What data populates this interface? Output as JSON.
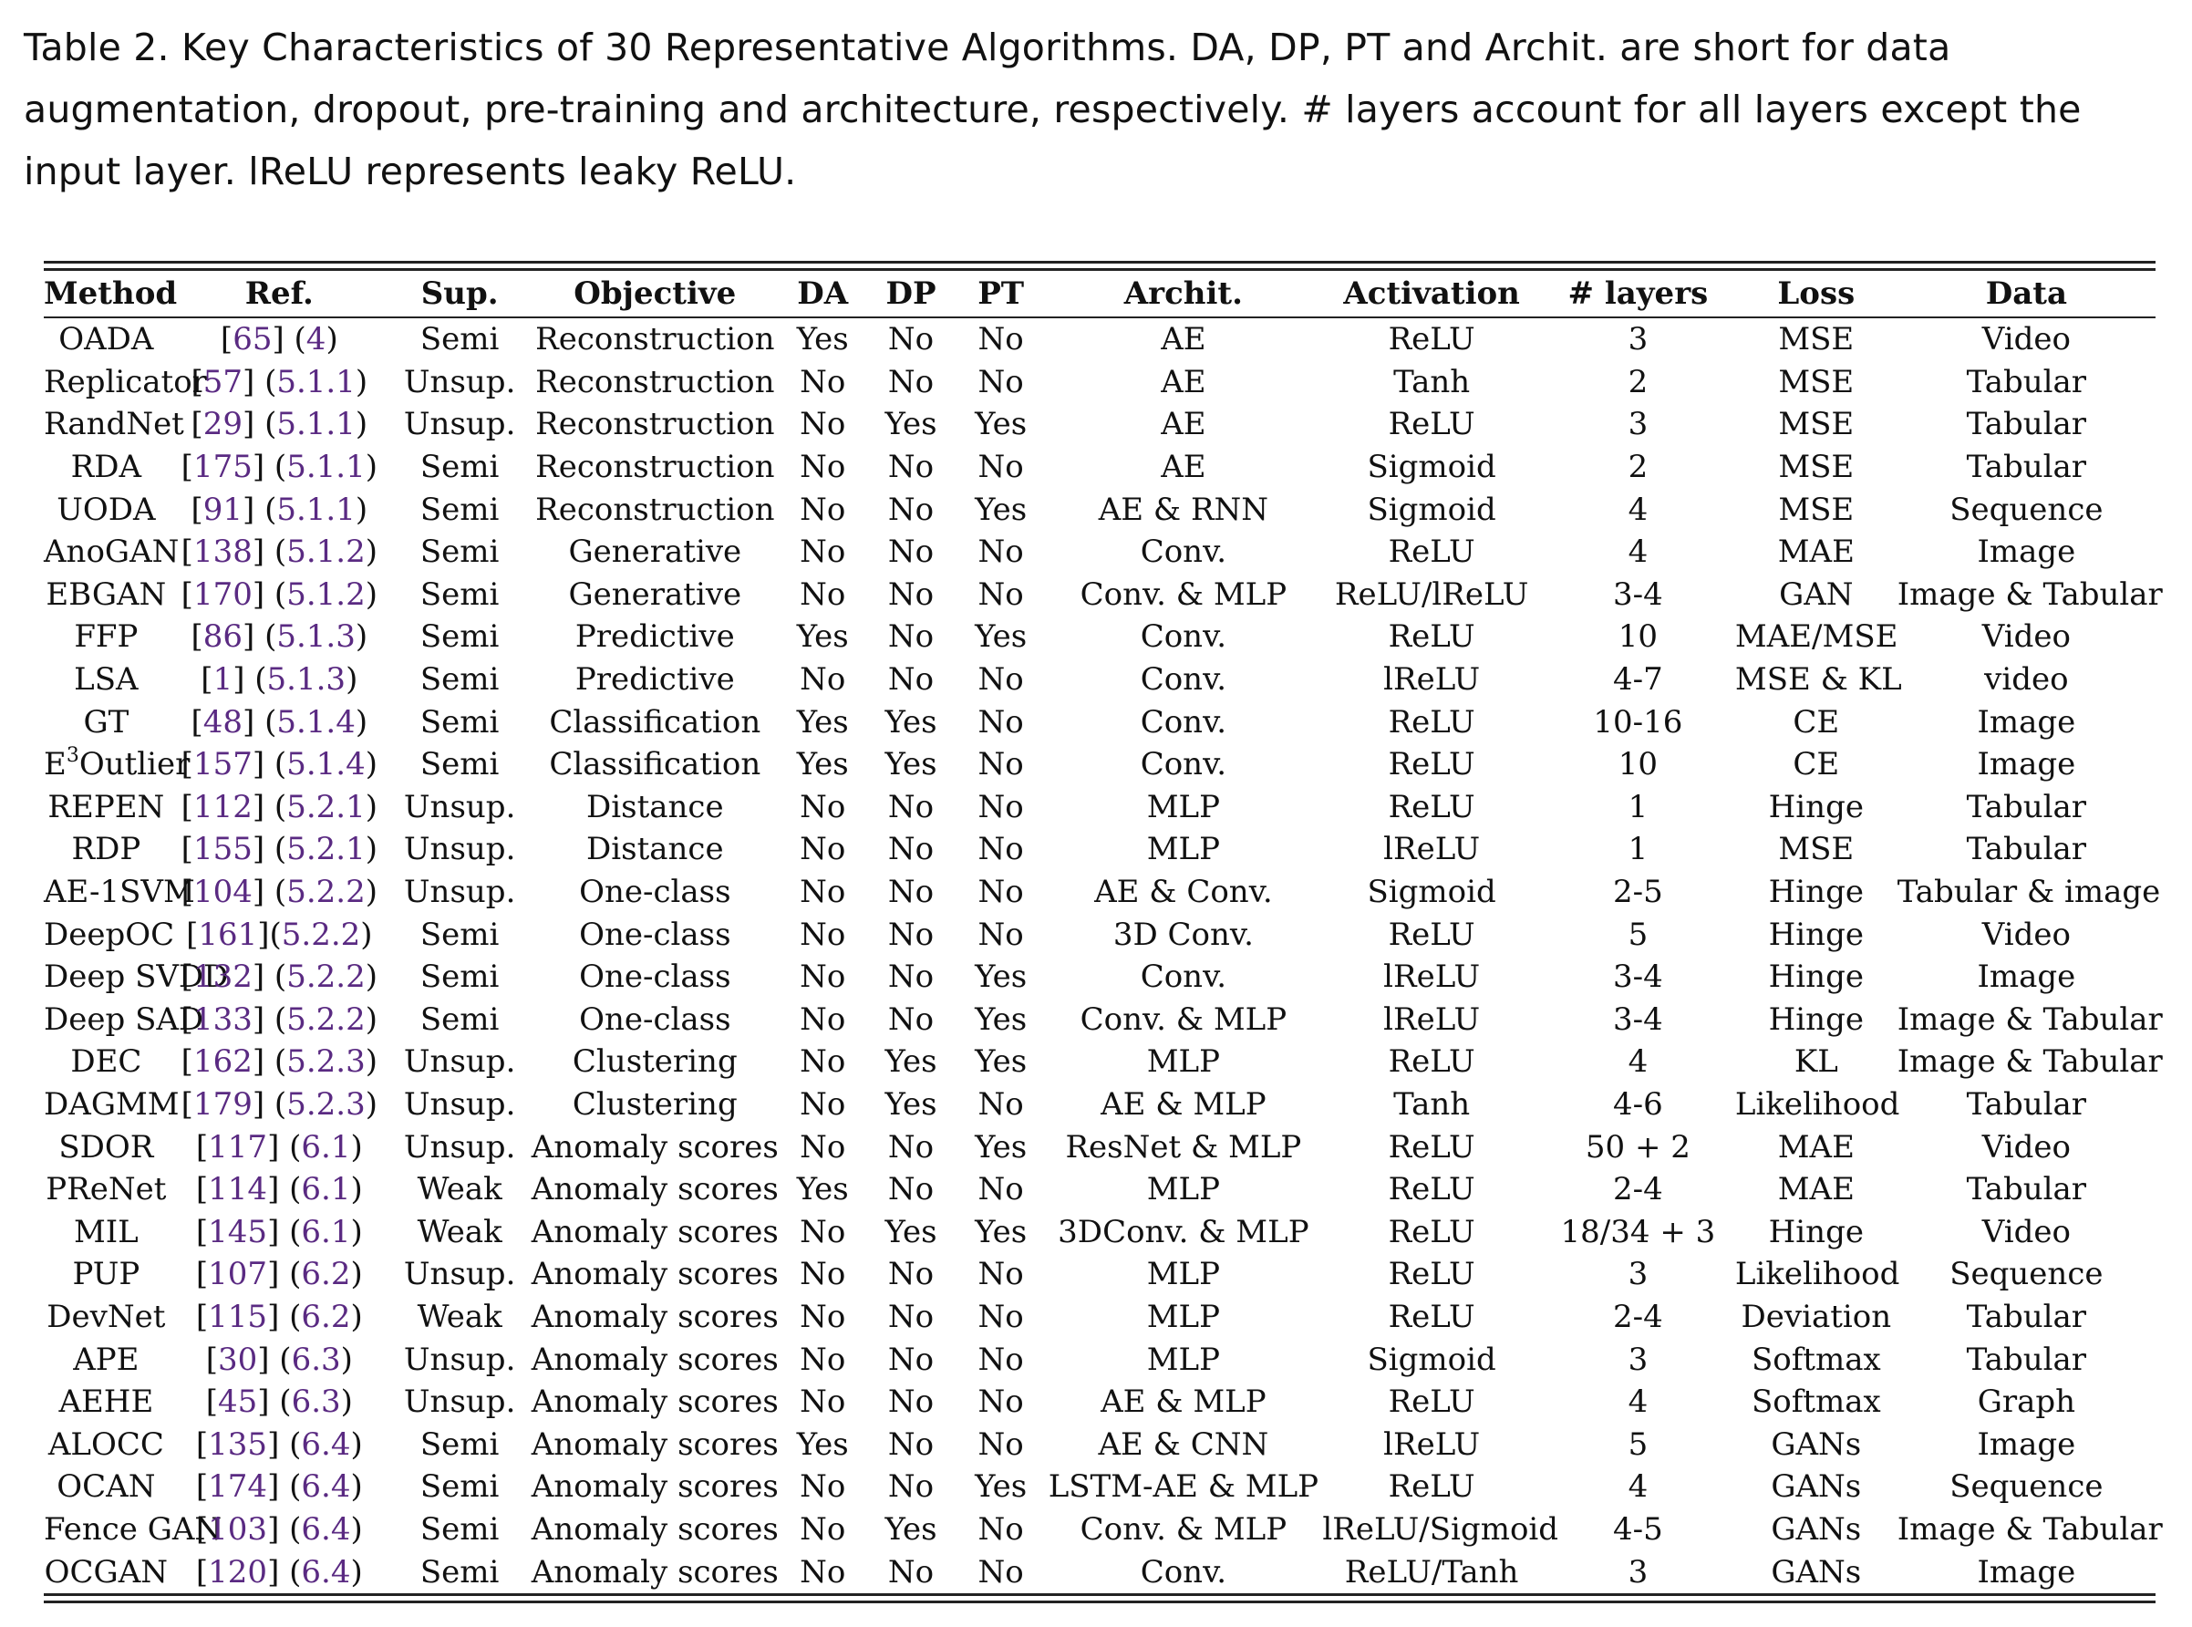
{
  "caption": "Table 2.  Key Characteristics of 30 Representative Algorithms. DA, DP, PT and Archit. are short for data augmentation, dropout, pre-training and architecture, respectively. # layers account for all layers except the input layer. lReLU represents leaky ReLU.",
  "colors": {
    "reference_link": "#5a2a82",
    "text": "#111111"
  },
  "table": {
    "headers": [
      "Method",
      "Ref.",
      "Sup.",
      "Objective",
      "DA",
      "DP",
      "PT",
      "Archit.",
      "Activation",
      "# layers",
      "Loss",
      "Data"
    ],
    "rows": [
      {
        "method": "OADA",
        "ref_num": "65",
        "ref_sec": "4",
        "sup": "Semi",
        "objective": "Reconstruction",
        "da": "Yes",
        "dp": "No",
        "pt": "No",
        "archit": "AE",
        "activation": "ReLU",
        "layers": "3",
        "loss": "MSE",
        "data": "Video"
      },
      {
        "method": "Replicator",
        "ref_num": "57",
        "ref_sec": "5.1.1",
        "sup": "Unsup.",
        "objective": "Reconstruction",
        "da": "No",
        "dp": "No",
        "pt": "No",
        "archit": "AE",
        "activation": "Tanh",
        "layers": "2",
        "loss": "MSE",
        "data": "Tabular"
      },
      {
        "method": "RandNet",
        "ref_num": "29",
        "ref_sec": "5.1.1",
        "sup": "Unsup.",
        "objective": "Reconstruction",
        "da": "No",
        "dp": "Yes",
        "pt": "Yes",
        "archit": "AE",
        "activation": "ReLU",
        "layers": "3",
        "loss": "MSE",
        "data": "Tabular"
      },
      {
        "method": "RDA",
        "ref_num": "175",
        "ref_sec": "5.1.1",
        "sup": "Semi",
        "objective": "Reconstruction",
        "da": "No",
        "dp": "No",
        "pt": "No",
        "archit": "AE",
        "activation": "Sigmoid",
        "layers": "2",
        "loss": "MSE",
        "data": "Tabular"
      },
      {
        "method": "UODA",
        "ref_num": "91",
        "ref_sec": "5.1.1",
        "sup": "Semi",
        "objective": "Reconstruction",
        "da": "No",
        "dp": "No",
        "pt": "Yes",
        "archit": "AE & RNN",
        "activation": "Sigmoid",
        "layers": "4",
        "loss": "MSE",
        "data": "Sequence"
      },
      {
        "method": "AnoGAN",
        "ref_num": "138",
        "ref_sec": "5.1.2",
        "sup": "Semi",
        "objective": "Generative",
        "da": "No",
        "dp": "No",
        "pt": "No",
        "archit": "Conv.",
        "activation": "ReLU",
        "layers": "4",
        "loss": "MAE",
        "data": "Image"
      },
      {
        "method": "EBGAN",
        "ref_num": "170",
        "ref_sec": "5.1.2",
        "sup": "Semi",
        "objective": "Generative",
        "da": "No",
        "dp": "No",
        "pt": "No",
        "archit": "Conv. & MLP",
        "activation": "ReLU/lReLU",
        "layers": "3-4",
        "loss": "GAN",
        "data": "Image & Tabular"
      },
      {
        "method": "FFP",
        "ref_num": "86",
        "ref_sec": "5.1.3",
        "sup": "Semi",
        "objective": "Predictive",
        "da": "Yes",
        "dp": "No",
        "pt": "Yes",
        "archit": "Conv.",
        "activation": "ReLU",
        "layers": "10",
        "loss": "MAE/MSE",
        "data": "Video"
      },
      {
        "method": "LSA",
        "ref_num": "1",
        "ref_sec": "5.1.3",
        "sup": "Semi",
        "objective": "Predictive",
        "da": "No",
        "dp": "No",
        "pt": "No",
        "archit": "Conv.",
        "activation": "lReLU",
        "layers": "4-7",
        "loss": "MSE & KL",
        "data": "video"
      },
      {
        "method": "GT",
        "ref_num": "48",
        "ref_sec": "5.1.4",
        "sup": "Semi",
        "objective": "Classification",
        "da": "Yes",
        "dp": "Yes",
        "pt": "No",
        "archit": "Conv.",
        "activation": "ReLU",
        "layers": "10-16",
        "loss": "CE",
        "data": "Image"
      },
      {
        "method_base": "E",
        "method_sup": "3",
        "method_rest": "Outlier",
        "ref_num": "157",
        "ref_sec": "5.1.4",
        "sup": "Semi",
        "objective": "Classification",
        "da": "Yes",
        "dp": "Yes",
        "pt": "No",
        "archit": "Conv.",
        "activation": "ReLU",
        "layers": "10",
        "loss": "CE",
        "data": "Image"
      },
      {
        "method": "REPEN",
        "ref_num": "112",
        "ref_sec": "5.2.1",
        "sup": "Unsup.",
        "objective": "Distance",
        "da": "No",
        "dp": "No",
        "pt": "No",
        "archit": "MLP",
        "activation": "ReLU",
        "layers": "1",
        "loss": "Hinge",
        "data": "Tabular"
      },
      {
        "method": "RDP",
        "ref_num": "155",
        "ref_sec": "5.2.1",
        "sup": "Unsup.",
        "objective": "Distance",
        "da": "No",
        "dp": "No",
        "pt": "No",
        "archit": "MLP",
        "activation": "lReLU",
        "layers": "1",
        "loss": "MSE",
        "data": "Tabular"
      },
      {
        "method": "AE-1SVM",
        "ref_num": "104",
        "ref_sec": "5.2.2",
        "sup": "Unsup.",
        "objective": "One-class",
        "da": "No",
        "dp": "No",
        "pt": "No",
        "archit": "AE & Conv.",
        "activation": "Sigmoid",
        "layers": "2-5",
        "loss": "Hinge",
        "data": "Tabular & image"
      },
      {
        "method": "DeepOC",
        "ref_num": "161",
        "ref_sec": "5.2.2",
        "ref_nospace": true,
        "sup": "Semi",
        "objective": "One-class",
        "da": "No",
        "dp": "No",
        "pt": "No",
        "archit": "3D Conv.",
        "activation": "ReLU",
        "layers": "5",
        "loss": "Hinge",
        "data": "Video"
      },
      {
        "method": "Deep SVDD",
        "ref_num": "132",
        "ref_sec": "5.2.2",
        "sup": "Semi",
        "objective": "One-class",
        "da": "No",
        "dp": "No",
        "pt": "Yes",
        "archit": "Conv.",
        "activation": "lReLU",
        "layers": "3-4",
        "loss": "Hinge",
        "data": "Image"
      },
      {
        "method": "Deep SAD",
        "ref_num": "133",
        "ref_sec": "5.2.2",
        "sup": "Semi",
        "objective": "One-class",
        "da": "No",
        "dp": "No",
        "pt": "Yes",
        "archit": "Conv. & MLP",
        "activation": "lReLU",
        "layers": "3-4",
        "loss": "Hinge",
        "data": "Image & Tabular"
      },
      {
        "method": "DEC",
        "ref_num": "162",
        "ref_sec": "5.2.3",
        "sup": "Unsup.",
        "objective": "Clustering",
        "da": "No",
        "dp": "Yes",
        "pt": "Yes",
        "archit": "MLP",
        "activation": "ReLU",
        "layers": "4",
        "loss": "KL",
        "data": "Image & Tabular"
      },
      {
        "method": "DAGMM",
        "ref_num": "179",
        "ref_sec": "5.2.3",
        "sup": "Unsup.",
        "objective": "Clustering",
        "da": "No",
        "dp": "Yes",
        "pt": "No",
        "archit": "AE & MLP",
        "activation": "Tanh",
        "layers": "4-6",
        "loss": "Likelihood",
        "data": "Tabular"
      },
      {
        "method": "SDOR",
        "ref_num": "117",
        "ref_sec": "6.1",
        "sup": "Unsup.",
        "objective": "Anomaly scores",
        "da": "No",
        "dp": "No",
        "pt": "Yes",
        "archit": "ResNet & MLP",
        "activation": "ReLU",
        "layers": "50 + 2",
        "loss": "MAE",
        "data": "Video"
      },
      {
        "method": "PReNet",
        "ref_num": "114",
        "ref_sec": "6.1",
        "sup": "Weak",
        "objective": "Anomaly scores",
        "da": "Yes",
        "dp": "No",
        "pt": "No",
        "archit": "MLP",
        "activation": "ReLU",
        "layers": "2-4",
        "loss": "MAE",
        "data": "Tabular"
      },
      {
        "method": "MIL",
        "ref_num": "145",
        "ref_sec": "6.1",
        "sup": "Weak",
        "objective": "Anomaly scores",
        "da": "No",
        "dp": "Yes",
        "pt": "Yes",
        "archit": "3DConv. & MLP",
        "activation": "ReLU",
        "layers": "18/34 + 3",
        "loss": "Hinge",
        "data": "Video"
      },
      {
        "method": "PUP",
        "ref_num": "107",
        "ref_sec": "6.2",
        "sup": "Unsup.",
        "objective": "Anomaly scores",
        "da": "No",
        "dp": "No",
        "pt": "No",
        "archit": "MLP",
        "activation": "ReLU",
        "layers": "3",
        "loss": "Likelihood",
        "data": "Sequence"
      },
      {
        "method": "DevNet",
        "ref_num": "115",
        "ref_sec": "6.2",
        "sup": "Weak",
        "objective": "Anomaly scores",
        "da": "No",
        "dp": "No",
        "pt": "No",
        "archit": "MLP",
        "activation": "ReLU",
        "layers": "2-4",
        "loss": "Deviation",
        "data": "Tabular"
      },
      {
        "method": "APE",
        "ref_num": "30",
        "ref_sec": "6.3",
        "sup": "Unsup.",
        "objective": "Anomaly scores",
        "da": "No",
        "dp": "No",
        "pt": "No",
        "archit": "MLP",
        "activation": "Sigmoid",
        "layers": "3",
        "loss": "Softmax",
        "data": "Tabular"
      },
      {
        "method": "AEHE",
        "ref_num": "45",
        "ref_sec": "6.3",
        "sup": "Unsup.",
        "objective": "Anomaly scores",
        "da": "No",
        "dp": "No",
        "pt": "No",
        "archit": "AE & MLP",
        "activation": "ReLU",
        "layers": "4",
        "loss": "Softmax",
        "data": "Graph"
      },
      {
        "method": "ALOCC",
        "ref_num": "135",
        "ref_sec": "6.4",
        "sup": "Semi",
        "objective": "Anomaly scores",
        "da": "Yes",
        "dp": "No",
        "pt": "No",
        "archit": "AE & CNN",
        "activation": "lReLU",
        "layers": "5",
        "loss": "GANs",
        "data": "Image"
      },
      {
        "method": "OCAN",
        "ref_num": "174",
        "ref_sec": "6.4",
        "sup": "Semi",
        "objective": "Anomaly scores",
        "da": "No",
        "dp": "No",
        "pt": "Yes",
        "archit": "LSTM-AE & MLP",
        "activation": "ReLU",
        "layers": "4",
        "loss": "GANs",
        "data": "Sequence"
      },
      {
        "method": "Fence GAN",
        "ref_num": "103",
        "ref_sec": "6.4",
        "sup": "Semi",
        "objective": "Anomaly scores",
        "da": "No",
        "dp": "Yes",
        "pt": "No",
        "archit": "Conv. & MLP",
        "activation": "lReLU/Sigmoid",
        "layers": "4-5",
        "loss": "GANs",
        "data": "Image & Tabular"
      },
      {
        "method": "OCGAN",
        "ref_num": "120",
        "ref_sec": "6.4",
        "sup": "Semi",
        "objective": "Anomaly scores",
        "da": "No",
        "dp": "No",
        "pt": "No",
        "archit": "Conv.",
        "activation": "ReLU/Tanh",
        "layers": "3",
        "loss": "GANs",
        "data": "Image"
      }
    ]
  }
}
